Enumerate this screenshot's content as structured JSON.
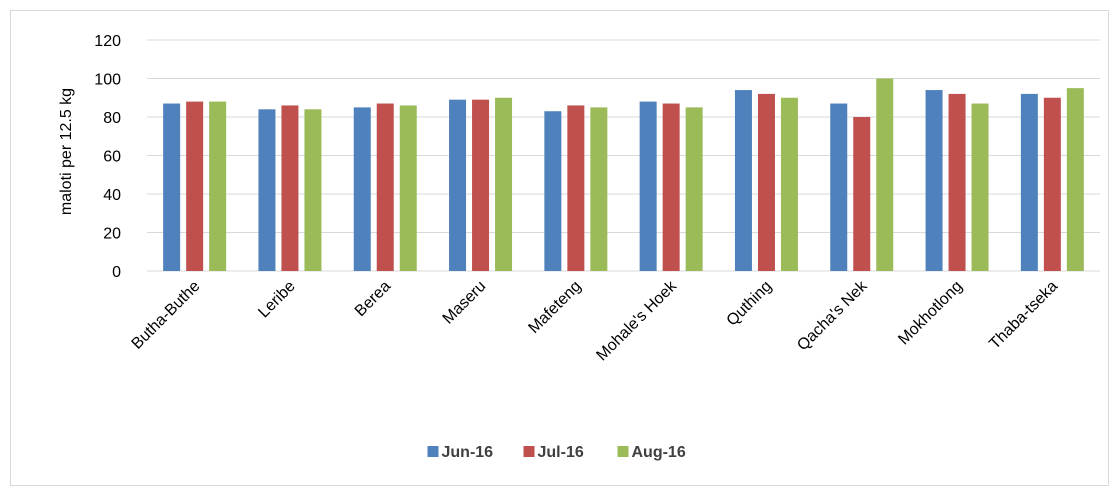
{
  "chart_data": {
    "type": "bar",
    "categories": [
      "Butha-Buthe",
      "Leribe",
      "Berea",
      "Maseru",
      "Mafeteng",
      "Mohale's Hoek",
      "Quthing",
      "Qacha's Nek",
      "Mokhotlong",
      "Thaba-tseka"
    ],
    "series": [
      {
        "name": "Jun-16",
        "color": "#4f81bd",
        "values": [
          87,
          84,
          85,
          89,
          83,
          88,
          94,
          87,
          94,
          92
        ]
      },
      {
        "name": "Jul-16",
        "color": "#c0504d",
        "values": [
          88,
          86,
          87,
          89,
          86,
          87,
          92,
          80,
          92,
          90
        ]
      },
      {
        "name": "Aug-16",
        "color": "#9bbb59",
        "values": [
          88,
          84,
          86,
          90,
          85,
          85,
          90,
          100,
          87,
          95
        ]
      }
    ],
    "title": "",
    "xlabel": "",
    "ylabel": "maloti per 12.5 kg",
    "ylim": [
      0,
      120
    ],
    "yticks": [
      0,
      20,
      40,
      60,
      80,
      100,
      120
    ],
    "grid": true,
    "legend_position": "bottom",
    "gridline_color": "#d9d9d9"
  }
}
